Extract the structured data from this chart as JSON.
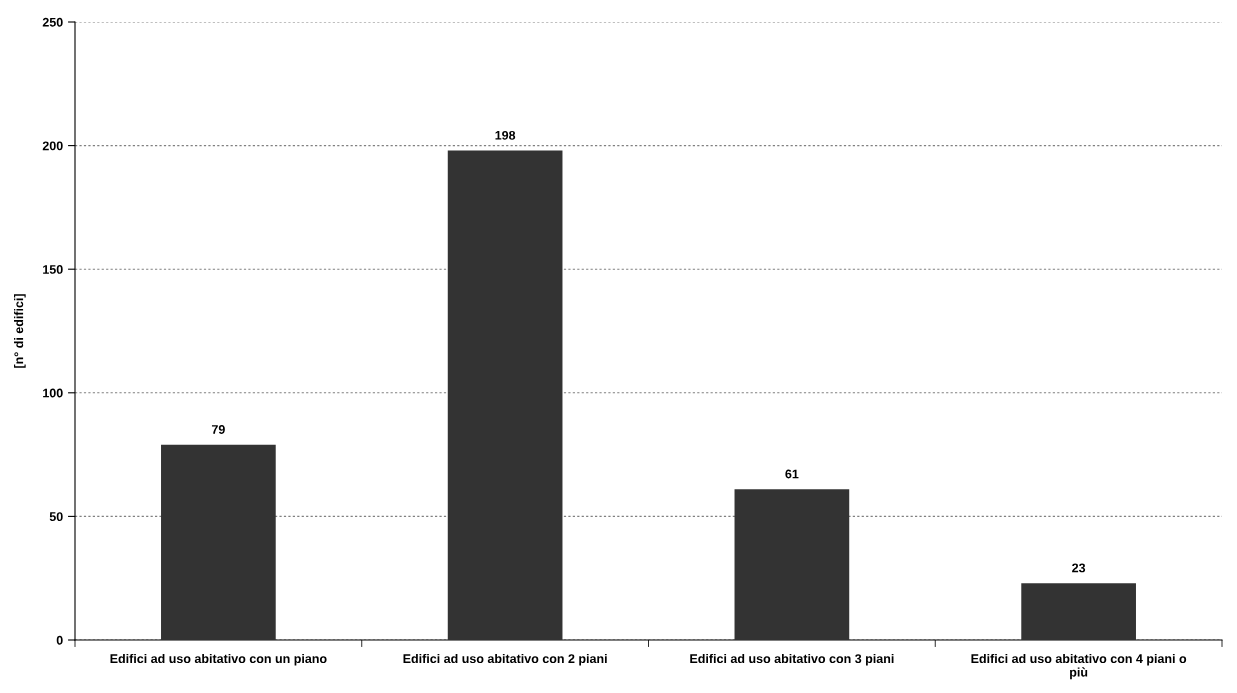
{
  "chart_data": {
    "type": "bar",
    "ylabel": "[n° di edifici]",
    "categories": [
      "Edifici ad uso abitativo con un piano",
      "Edifici ad uso abitativo con 2 piani",
      "Edifici ad uso abitativo con 3 piani",
      "Edifici ad uso abitativo con 4 piani o\npiù"
    ],
    "values": [
      79,
      198,
      61,
      23
    ],
    "color": "#333333",
    "ylim": [
      0,
      250
    ],
    "yticks": [
      0,
      50,
      100,
      150,
      200,
      250
    ],
    "grid": "y",
    "data_labels": true
  }
}
